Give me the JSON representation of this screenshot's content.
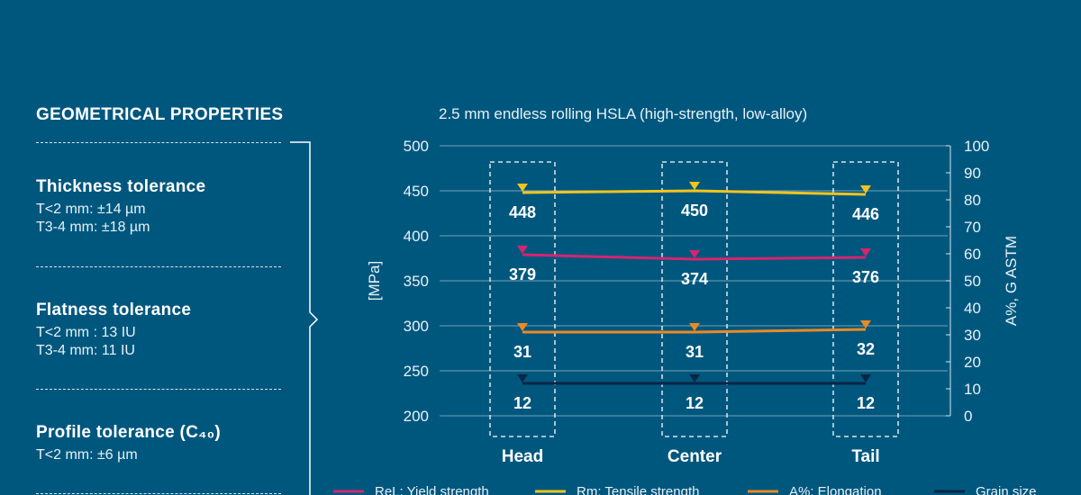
{
  "left": {
    "heading": "GEOMETRICAL PROPERTIES",
    "props": [
      {
        "title": "Thickness tolerance",
        "lines": [
          "T<2 mm: ±14 µm",
          "T3-4 mm: ±18 µm"
        ]
      },
      {
        "title": "Flatness tolerance",
        "lines": [
          "T<2 mm : 13 IU",
          "T3-4 mm: 11 IU"
        ]
      },
      {
        "title": "Profile tolerance (C₄₀)",
        "lines": [
          "T<2 mm: ±6 µm"
        ]
      }
    ]
  },
  "chart_data": {
    "type": "line",
    "title": "2.5 mm endless rolling HSLA (high-strength, low-alloy)",
    "categories": [
      "Head",
      "Center",
      "Tail"
    ],
    "ylabel": "[MPa]",
    "y2label": "A%, G ASTM",
    "ylim": [
      200,
      500
    ],
    "y2lim": [
      0,
      100
    ],
    "yticks": [
      "200",
      "250",
      "300",
      "350",
      "400",
      "450",
      "500"
    ],
    "y2ticks": [
      "0",
      "10",
      "20",
      "30",
      "40",
      "50",
      "60",
      "70",
      "80",
      "90",
      "100"
    ],
    "grid": true,
    "legend_position": "bottom",
    "series": [
      {
        "name": "ReL: Yield strength",
        "axis": "left",
        "values": [
          379,
          374,
          376
        ],
        "labels": [
          "379",
          "374",
          "376"
        ],
        "color": "#d6246e"
      },
      {
        "name": "Rm: Tensile strength",
        "axis": "left",
        "values": [
          448,
          450,
          446
        ],
        "labels": [
          "448",
          "450",
          "446"
        ],
        "color": "#f2c41c"
      },
      {
        "name": "A%: Elongation",
        "axis": "right",
        "values": [
          31,
          31,
          32
        ],
        "labels": [
          "31",
          "31",
          "32"
        ],
        "color": "#ec8a22"
      },
      {
        "name": "Grain size",
        "axis": "right",
        "values": [
          12,
          12,
          12
        ],
        "labels": [
          "12",
          "12",
          "12"
        ],
        "color": "#0c2446"
      }
    ]
  }
}
